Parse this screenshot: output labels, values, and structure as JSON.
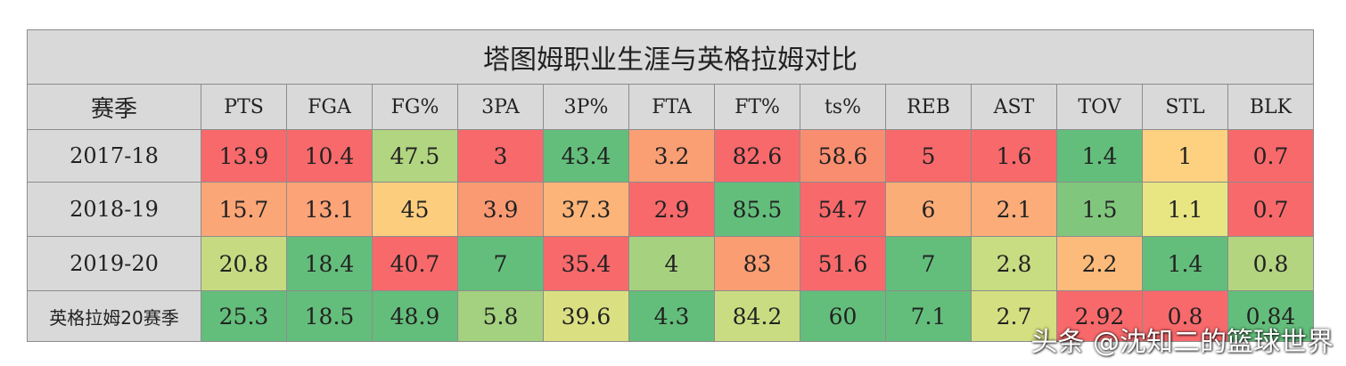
{
  "chart_data": {
    "type": "table",
    "title": "塔图姆职业生涯与英格拉姆对比",
    "columns": [
      "赛季",
      "PTS",
      "FGA",
      "FG%",
      "3PA",
      "3P%",
      "FTA",
      "FT%",
      "ts%",
      "REB",
      "AST",
      "TOV",
      "STL",
      "BLK"
    ],
    "rows": [
      {
        "label": "2017-18",
        "values": [
          "13.9",
          "10.4",
          "47.5",
          "3",
          "43.4",
          "3.2",
          "82.6",
          "58.6",
          "5",
          "1.6",
          "1.4",
          "1",
          "0.7"
        ]
      },
      {
        "label": "2018-19",
        "values": [
          "15.7",
          "13.1",
          "45",
          "3.9",
          "37.3",
          "2.9",
          "85.5",
          "54.7",
          "6",
          "2.1",
          "1.5",
          "1.1",
          "0.7"
        ]
      },
      {
        "label": "2019-20",
        "values": [
          "20.8",
          "18.4",
          "40.7",
          "7",
          "35.4",
          "4",
          "83",
          "51.6",
          "7",
          "2.8",
          "2.2",
          "1.4",
          "0.8"
        ]
      },
      {
        "label": "英格拉姆20赛季",
        "values": [
          "25.3",
          "18.5",
          "48.9",
          "5.8",
          "39.6",
          "4.3",
          "84.2",
          "60",
          "7.1",
          "2.7",
          "2.92",
          "0.8",
          "0.84"
        ]
      }
    ],
    "cell_colors": [
      [
        "#f8696b",
        "#f8696b",
        "#b1d580",
        "#f8696b",
        "#63be7b",
        "#fa9e73",
        "#f8696b",
        "#f98d70",
        "#f8696b",
        "#f8696b",
        "#63be7b",
        "#fdd17f",
        "#f8696b"
      ],
      [
        "#fba676",
        "#fca377",
        "#fdcd7e",
        "#fa9a72",
        "#fcb479",
        "#f8696b",
        "#63be7b",
        "#f8696b",
        "#fbad78",
        "#fbac78",
        "#80c77d",
        "#e8e583",
        "#f8696b"
      ],
      [
        "#c6db81",
        "#63be7b",
        "#f8696b",
        "#63be7b",
        "#f8696b",
        "#a6d27f",
        "#fa9d73",
        "#f8696b",
        "#63be7b",
        "#c8dc81",
        "#fcbb7b",
        "#63be7b",
        "#b4d580"
      ],
      [
        "#63be7b",
        "#63be7b",
        "#63be7b",
        "#a3d17f",
        "#dae082",
        "#63be7b",
        "#cadc81",
        "#63be7b",
        "#63be7b",
        "#d4df82",
        "#f8696b",
        "#f8696b",
        "#63be7b"
      ]
    ]
  },
  "watermark": "头条 @沈知二的篮球世界",
  "colors": {
    "header_bg": "#d9d9d9",
    "border": "#8c8c8c"
  }
}
